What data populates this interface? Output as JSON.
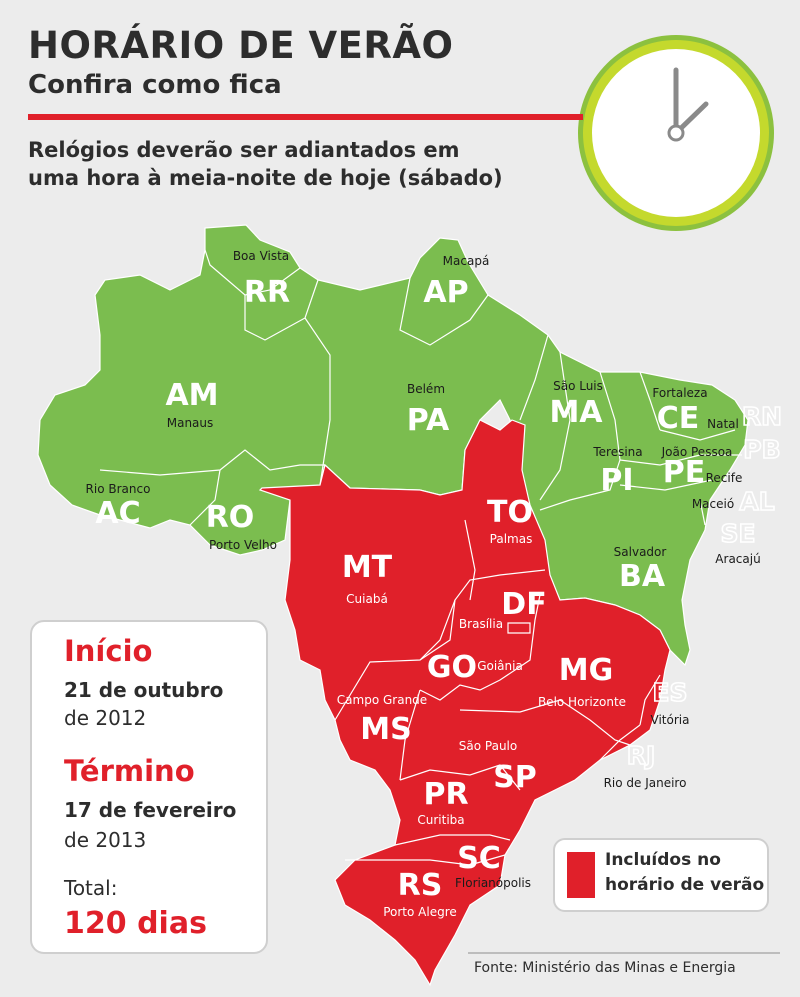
{
  "header": {
    "title": "HORÁRIO DE VERÃO",
    "subtitle": "Confira como fica",
    "description_line1": "Relógios deverão ser adiantados em",
    "description_line2": "uma hora à meia-noite de hoje (sábado)"
  },
  "info": {
    "start_label": "Início",
    "start_date_bold": "21 de outubro",
    "start_year": "de 2012",
    "end_label": "Término",
    "end_date_bold": "17 de fevereiro",
    "end_year": "de 2013",
    "total_label": "Total:",
    "total_value": "120 dias"
  },
  "legend": {
    "line1": "Incluídos no",
    "line2": "horário de verão",
    "color": "#e0202a"
  },
  "source": "Fonte: Ministério das Minas e Energia",
  "colors": {
    "included": "#e0202a",
    "not_included": "#7bbd4f",
    "clock_ring": "#8cc13f"
  },
  "states": {
    "RR": {
      "abbr": "RR",
      "capital": "Boa Vista",
      "daylight_saving": false
    },
    "AP": {
      "abbr": "AP",
      "capital": "Macapá",
      "daylight_saving": false
    },
    "AM": {
      "abbr": "AM",
      "capital": "Manaus",
      "daylight_saving": false
    },
    "PA": {
      "abbr": "PA",
      "capital": "Belém",
      "daylight_saving": false
    },
    "MA": {
      "abbr": "MA",
      "capital": "São Luis",
      "daylight_saving": false
    },
    "CE": {
      "abbr": "CE",
      "capital": "Fortaleza",
      "daylight_saving": false
    },
    "RN": {
      "abbr": "RN",
      "capital": "Natal",
      "daylight_saving": false
    },
    "PB": {
      "abbr": "PB",
      "capital": "João Pessoa",
      "daylight_saving": false
    },
    "PI": {
      "abbr": "PI",
      "capital": "Teresina",
      "daylight_saving": false
    },
    "PE": {
      "abbr": "PE",
      "capital": "Recife",
      "daylight_saving": false
    },
    "AL": {
      "abbr": "AL",
      "capital": "Maceió",
      "daylight_saving": false
    },
    "SE": {
      "abbr": "SE",
      "capital": "Aracajú",
      "daylight_saving": false
    },
    "AC": {
      "abbr": "AC",
      "capital": "Rio Branco",
      "daylight_saving": false
    },
    "RO": {
      "abbr": "RO",
      "capital": "Porto Velho",
      "daylight_saving": false
    },
    "BA": {
      "abbr": "BA",
      "capital": "Salvador",
      "daylight_saving": false
    },
    "TO": {
      "abbr": "TO",
      "capital": "Palmas",
      "daylight_saving": true
    },
    "MT": {
      "abbr": "MT",
      "capital": "Cuiabá",
      "daylight_saving": true
    },
    "DF": {
      "abbr": "DF",
      "capital": "Brasília",
      "daylight_saving": true
    },
    "GO": {
      "abbr": "GO",
      "capital": "Goiânia",
      "daylight_saving": true
    },
    "MG": {
      "abbr": "MG",
      "capital": "Belo Horizonte",
      "daylight_saving": true
    },
    "ES": {
      "abbr": "ES",
      "capital": "Vitória",
      "daylight_saving": true
    },
    "MS": {
      "abbr": "MS",
      "capital": "Campo Grande",
      "daylight_saving": true
    },
    "SP": {
      "abbr": "SP",
      "capital": "São Paulo",
      "daylight_saving": true
    },
    "RJ": {
      "abbr": "RJ",
      "capital": "Rio de Janeiro",
      "daylight_saving": true
    },
    "PR": {
      "abbr": "PR",
      "capital": "Curitiba",
      "daylight_saving": true
    },
    "SC": {
      "abbr": "SC",
      "capital": "Florianópolis",
      "daylight_saving": true
    },
    "RS": {
      "abbr": "RS",
      "capital": "Porto Alegre",
      "daylight_saving": true
    }
  }
}
